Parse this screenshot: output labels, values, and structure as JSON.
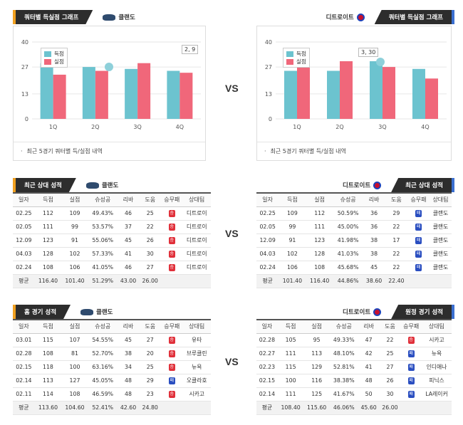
{
  "vs_label": "VS",
  "colors": {
    "home": "#6cc3cf",
    "away": "#f0677a",
    "accent_left": "#f0a020",
    "accent_right": "#3a6fd0"
  },
  "left_chart": {
    "header": "쿼터별 득실점 그래프",
    "team": "클랜도",
    "team_icon": "cavs-logo-icon",
    "tooltip": "2, 9",
    "note": "최근 5경기 쿼터별 득/실점 내역",
    "legend": [
      "득점",
      "실점"
    ]
  },
  "right_chart": {
    "header": "쿼터별 득실점 그래프",
    "team": "디트로이트",
    "team_icon": "pistons-logo-icon",
    "tooltip": "3, 30",
    "note": "최근 5경기 쿼터별 득/실점 내역",
    "legend": [
      "득점",
      "실점"
    ]
  },
  "chart_data": [
    {
      "type": "bar",
      "categories": [
        "1Q",
        "2Q",
        "3Q",
        "4Q"
      ],
      "yticks": [
        0,
        13,
        27,
        40
      ],
      "ylim": [
        0,
        40
      ],
      "series": [
        {
          "name": "득점",
          "values": [
            29,
            27,
            26,
            25
          ]
        },
        {
          "name": "실점",
          "values": [
            23,
            25,
            29,
            24
          ]
        }
      ]
    },
    {
      "type": "bar",
      "categories": [
        "1Q",
        "2Q",
        "3Q",
        "4Q"
      ],
      "yticks": [
        0,
        13,
        27,
        40
      ],
      "ylim": [
        0,
        40
      ],
      "series": [
        {
          "name": "득점",
          "values": [
            25,
            25,
            30,
            26
          ]
        },
        {
          "name": "실점",
          "values": [
            31,
            30,
            27,
            21
          ]
        }
      ]
    }
  ],
  "columns": [
    "일자",
    "득점",
    "실점",
    "슈성공",
    "리바",
    "도움",
    "승무패",
    "상대팀"
  ],
  "tables": {
    "recent_left": {
      "header": "최근 상대 성적",
      "team": "클랜도",
      "rows": [
        [
          "02.25",
          "112",
          "109",
          "49.43%",
          "46",
          "25",
          "승",
          "디트로이"
        ],
        [
          "02.05",
          "111",
          "99",
          "53.57%",
          "37",
          "22",
          "승",
          "디트로이"
        ],
        [
          "12.09",
          "123",
          "91",
          "55.06%",
          "45",
          "26",
          "승",
          "디트로이"
        ],
        [
          "04.03",
          "128",
          "102",
          "57.33%",
          "41",
          "30",
          "승",
          "디트로이"
        ],
        [
          "02.24",
          "108",
          "106",
          "41.05%",
          "46",
          "27",
          "승",
          "디트로이"
        ]
      ],
      "avg": [
        "평균",
        "116.40",
        "101.40",
        "51.29%",
        "43.00",
        "26.00",
        "",
        ""
      ]
    },
    "recent_right": {
      "header": "최근 상대 성적",
      "team": "디트로이트",
      "rows": [
        [
          "02.25",
          "109",
          "112",
          "50.59%",
          "36",
          "29",
          "패",
          "클랜도"
        ],
        [
          "02.05",
          "99",
          "111",
          "45.00%",
          "36",
          "22",
          "패",
          "클랜도"
        ],
        [
          "12.09",
          "91",
          "123",
          "41.98%",
          "38",
          "17",
          "패",
          "클랜도"
        ],
        [
          "04.03",
          "102",
          "128",
          "41.03%",
          "38",
          "22",
          "패",
          "클랜도"
        ],
        [
          "02.24",
          "106",
          "108",
          "45.68%",
          "45",
          "22",
          "패",
          "클랜도"
        ]
      ],
      "avg": [
        "평균",
        "101.40",
        "116.40",
        "44.86%",
        "38.60",
        "22.40",
        "",
        ""
      ]
    },
    "home_left": {
      "header": "홈 경기 성적",
      "team": "클랜도",
      "rows": [
        [
          "03.01",
          "115",
          "107",
          "54.55%",
          "45",
          "27",
          "승",
          "유타"
        ],
        [
          "02.28",
          "108",
          "81",
          "52.70%",
          "38",
          "20",
          "승",
          "브루클린"
        ],
        [
          "02.15",
          "118",
          "100",
          "63.16%",
          "34",
          "25",
          "승",
          "뉴욕"
        ],
        [
          "02.14",
          "113",
          "127",
          "45.05%",
          "48",
          "29",
          "패",
          "오클라호"
        ],
        [
          "02.11",
          "114",
          "108",
          "46.59%",
          "48",
          "23",
          "승",
          "시카고"
        ]
      ],
      "avg": [
        "평균",
        "113.60",
        "104.60",
        "52.41%",
        "42.60",
        "24.80",
        "",
        ""
      ]
    },
    "away_right": {
      "header": "원정 경기 성적",
      "team": "디트로이트",
      "rows": [
        [
          "02.28",
          "105",
          "95",
          "49.33%",
          "47",
          "22",
          "승",
          "시카고"
        ],
        [
          "02.27",
          "111",
          "113",
          "48.10%",
          "42",
          "25",
          "패",
          "뉴욕"
        ],
        [
          "02.23",
          "115",
          "129",
          "52.81%",
          "41",
          "27",
          "패",
          "인디애나"
        ],
        [
          "02.15",
          "100",
          "116",
          "38.38%",
          "48",
          "26",
          "패",
          "피닉스"
        ],
        [
          "02.14",
          "111",
          "125",
          "41.67%",
          "50",
          "30",
          "패",
          "LA레이커"
        ]
      ],
      "avg": [
        "평균",
        "108.40",
        "115.60",
        "46.06%",
        "45.60",
        "26.00",
        "",
        ""
      ]
    }
  }
}
